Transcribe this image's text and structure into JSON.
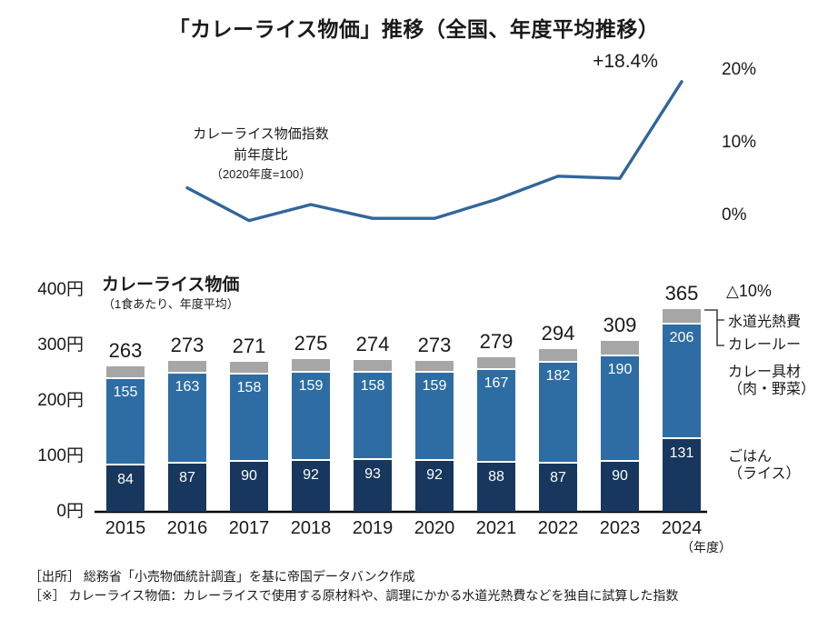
{
  "title": "「カレーライス物価」推移（全国、年度平均推移）",
  "colors": {
    "navy": "#17375e",
    "blue": "#2e6da4",
    "gray": "#a6a6a6",
    "line": "#31669b",
    "text": "#1a1a1a"
  },
  "chart_data": [
    {
      "type": "line",
      "name": "カレーライス物価指数 前年度比（%）",
      "title_annotation": [
        "カレーライス物価指数",
        "前年度比",
        "（2020年度=100）"
      ],
      "peak_label": "+18.4%",
      "x": [
        2016,
        2017,
        2018,
        2019,
        2020,
        2021,
        2022,
        2023,
        2024
      ],
      "series": [
        {
          "name": "前年度比（%）",
          "values": [
            3.8,
            -0.7,
            1.5,
            -0.4,
            -0.4,
            2.2,
            5.4,
            5.1,
            18.4
          ]
        }
      ],
      "yticks": [
        {
          "label": "20%",
          "value": 20
        },
        {
          "label": "10%",
          "value": 10
        },
        {
          "label": "0%",
          "value": 0
        }
      ],
      "ylim": [
        -2,
        22
      ],
      "grid": false,
      "legend_position": "none"
    },
    {
      "type": "bar",
      "stacked": true,
      "title": "カレーライス物価",
      "subtitle": "（1食あたり、年度平均）",
      "unit_label": "（年度）",
      "categories": [
        "2015",
        "2016",
        "2017",
        "2018",
        "2019",
        "2020",
        "2021",
        "2022",
        "2023",
        "2024"
      ],
      "totals": [
        263,
        273,
        271,
        275,
        274,
        273,
        279,
        294,
        309,
        365
      ],
      "series": [
        {
          "name": "ごはん（ライス）",
          "color": "#17375e",
          "values": [
            84,
            87,
            90,
            92,
            93,
            92,
            88,
            87,
            90,
            131
          ],
          "show_labels": true
        },
        {
          "name": "カレー具材（肉・野菜）",
          "color": "#2e6da4",
          "values": [
            155,
            163,
            158,
            159,
            158,
            159,
            167,
            182,
            190,
            206
          ],
          "show_labels": true
        },
        {
          "name": "カレールー・水道光熱費",
          "color": "#a6a6a6",
          "values": [
            24,
            23,
            23,
            24,
            23,
            22,
            24,
            25,
            29,
            28
          ],
          "show_labels": false
        }
      ],
      "yticks": [
        {
          "label": "400円",
          "value": 400
        },
        {
          "label": "300円",
          "value": 300
        },
        {
          "label": "200円",
          "value": 200
        },
        {
          "label": "100円",
          "value": 100
        },
        {
          "label": "0円",
          "value": 0
        }
      ],
      "ylim": [
        0,
        400
      ],
      "legend": {
        "delta_label": "△10%",
        "items": [
          "水道光熱費",
          "カレールー",
          "カレー具材\n（肉・野菜）",
          "ごはん\n（ライス）"
        ]
      }
    }
  ],
  "footer": [
    "［出所］ 総務省「小売物価統計調査」を基に帝国データバンク作成",
    "［※］ カレーライス物価：カレーライスで使用する原材料や、調理にかかる水道光熱費などを独自に試算した指数"
  ]
}
